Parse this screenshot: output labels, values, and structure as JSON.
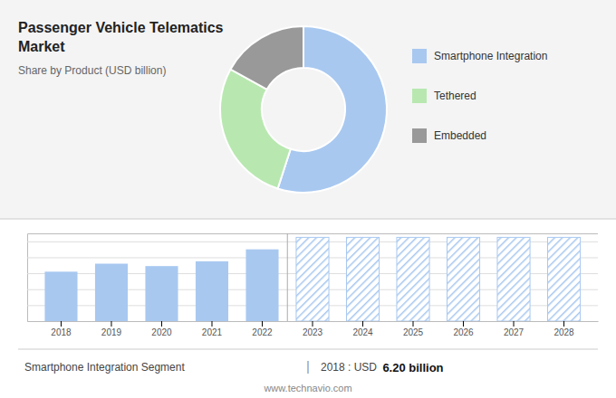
{
  "chart_data": [
    {
      "type": "pie",
      "title": [
        "Passenger Vehicle Telematics",
        "Market"
      ],
      "subtitle": "Share by Product (USD billion)",
      "categories": [
        "Smartphone Integration",
        "Tethered",
        "Embedded"
      ],
      "values": [
        55,
        28,
        17
      ],
      "colors": [
        "#a8c8f0",
        "#b8e8b0",
        "#999999"
      ],
      "legend": "right"
    },
    {
      "type": "bar",
      "categories": [
        "2018",
        "2019",
        "2020",
        "2021",
        "2022",
        "2023",
        "2024",
        "2025",
        "2026",
        "2027",
        "2028"
      ],
      "series": [
        {
          "color": "#a8c8f0",
          "values": [
            6.2,
            7.2,
            6.9,
            7.5,
            9.0,
            null,
            null,
            null,
            null,
            null,
            null
          ]
        },
        {
          "color": "#a8c8f0",
          "values": [
            null,
            null,
            null,
            null,
            null,
            10.5,
            10.5,
            10.5,
            10.5,
            10.5,
            10.5
          ]
        }
      ],
      "ylim": [
        0,
        11
      ],
      "yticks": [
        2,
        4,
        6,
        8,
        10
      ],
      "grid": true,
      "tick_labels": "x",
      "annotations": [
        "Smartphone Integration Segment",
        "|",
        "2018 : USD ",
        "6.20 billion",
        "www.technavio.com"
      ]
    }
  ]
}
